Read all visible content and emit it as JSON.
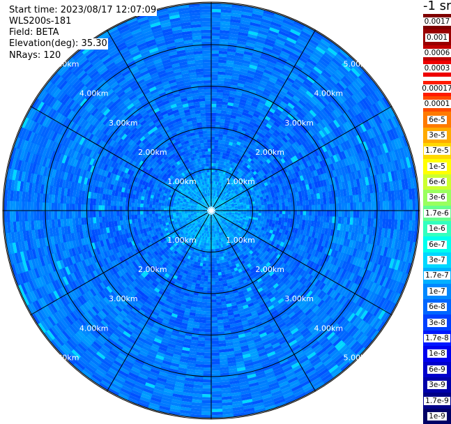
{
  "header": {
    "start_time": "Start time: 2023/08/17 12:07:09",
    "instrument": "WLS200s-181",
    "field": "Field: BETA",
    "elevation": "Elevation(deg): 35.30",
    "nrays": "NRays: 120"
  },
  "colorbar": {
    "unit": "-1 sr",
    "top_group": [
      {
        "label": "0.0017",
        "color": "#7f0000"
      },
      {
        "label": "0.001",
        "color": "#9a0000"
      },
      {
        "label": "0.0006",
        "color": "#c00000"
      },
      {
        "label": "0.0003",
        "color": "#ee0000"
      }
    ],
    "main_group": [
      {
        "label": "0.00017",
        "color": "#ff1a00"
      },
      {
        "label": "0.0001",
        "color": "#ff4a00"
      },
      {
        "label": "6e-5",
        "color": "#ff7a00"
      },
      {
        "label": "3e-5",
        "color": "#ffaa00"
      },
      {
        "label": "1.7e-5",
        "color": "#ffd800"
      },
      {
        "label": "1e-5",
        "color": "#ffff00"
      },
      {
        "label": "6e-6",
        "color": "#ccff2e"
      },
      {
        "label": "3e-6",
        "color": "#99ff5e"
      },
      {
        "label": "1.7e-6",
        "color": "#66ff8e"
      },
      {
        "label": "1e-6",
        "color": "#33ffbe"
      },
      {
        "label": "6e-7",
        "color": "#00ffee"
      },
      {
        "label": "3e-7",
        "color": "#00d8ff"
      },
      {
        "label": "1.7e-7",
        "color": "#00b0ff"
      },
      {
        "label": "1e-7",
        "color": "#0088ff"
      },
      {
        "label": "6e-8",
        "color": "#0066ff"
      },
      {
        "label": "3e-8",
        "color": "#0040ff"
      },
      {
        "label": "1.7e-8",
        "color": "#0018ff"
      },
      {
        "label": "1e-8",
        "color": "#0000ee"
      },
      {
        "label": "6e-9",
        "color": "#0000cc"
      },
      {
        "label": "3e-9",
        "color": "#0000aa"
      },
      {
        "label": "1.7e-9",
        "color": "#000088"
      },
      {
        "label": "1e-9",
        "color": "#000066"
      }
    ]
  },
  "chart_data": {
    "type": "heatmap",
    "projection": "polar-ppi",
    "field": "BETA",
    "nrays": 120,
    "range_rings_km": [
      1,
      2,
      3,
      4,
      5
    ],
    "ring_label_suffix": "km",
    "spoke_interval_deg": 30,
    "max_range_km": 5.0,
    "value_range": [
      1e-09,
      0.0017
    ],
    "dominant_colors": [
      "#0040ff",
      "#0066ff",
      "#0088ff",
      "#00b0ff",
      "#00d8ff"
    ],
    "pattern_notes": "Near-uniform backscatter around 3e-8 to 1.7e-7 across all azimuths; lighter ring of higher values within ~1 km of the lidar."
  }
}
